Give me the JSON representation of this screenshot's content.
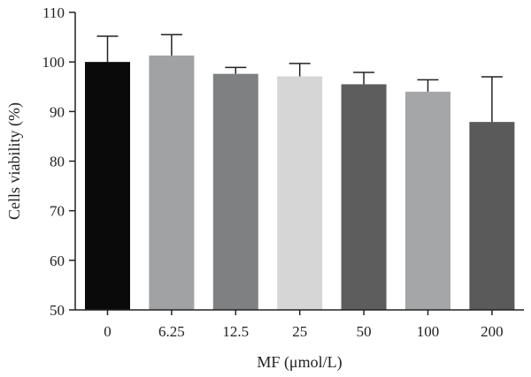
{
  "chart_data": {
    "type": "bar",
    "categories": [
      "0",
      "6.25",
      "12.5",
      "25",
      "50",
      "100",
      "200"
    ],
    "values": [
      100.0,
      101.3,
      97.6,
      97.1,
      95.5,
      94.0,
      87.9
    ],
    "errors": [
      5.2,
      4.2,
      1.3,
      2.6,
      2.4,
      2.4,
      9.1
    ],
    "bar_colors": [
      "#0a0a0a",
      "#a1a2a4",
      "#7f8082",
      "#d6d6d6",
      "#5d5d5e",
      "#a5a6a8",
      "#5a5a5b"
    ],
    "xlabel": "MF (μmol/L)",
    "ylabel": "Cells viability (%)",
    "ylim": [
      50,
      110
    ],
    "yticks": [
      50,
      60,
      70,
      80,
      90,
      100,
      110
    ],
    "grid": false,
    "legend": "none"
  }
}
